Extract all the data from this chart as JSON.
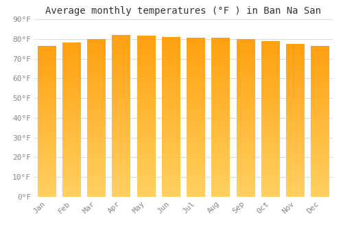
{
  "title": "Average monthly temperatures (°F ) in Ban Na San",
  "months": [
    "Jan",
    "Feb",
    "Mar",
    "Apr",
    "May",
    "Jun",
    "Jul",
    "Aug",
    "Sep",
    "Oct",
    "Nov",
    "Dec"
  ],
  "values": [
    76.5,
    78.0,
    80.0,
    82.0,
    81.5,
    81.0,
    80.5,
    80.5,
    80.0,
    79.0,
    77.5,
    76.5
  ],
  "ylim": [
    0,
    90
  ],
  "yticks": [
    0,
    10,
    20,
    30,
    40,
    50,
    60,
    70,
    80,
    90
  ],
  "bar_color_bottom": "#FFD060",
  "bar_color_top": "#FFA010",
  "background_color": "#FFFFFF",
  "grid_color": "#DDDDDD",
  "title_fontsize": 10,
  "tick_fontsize": 8,
  "font_family": "monospace",
  "bar_width": 0.75
}
